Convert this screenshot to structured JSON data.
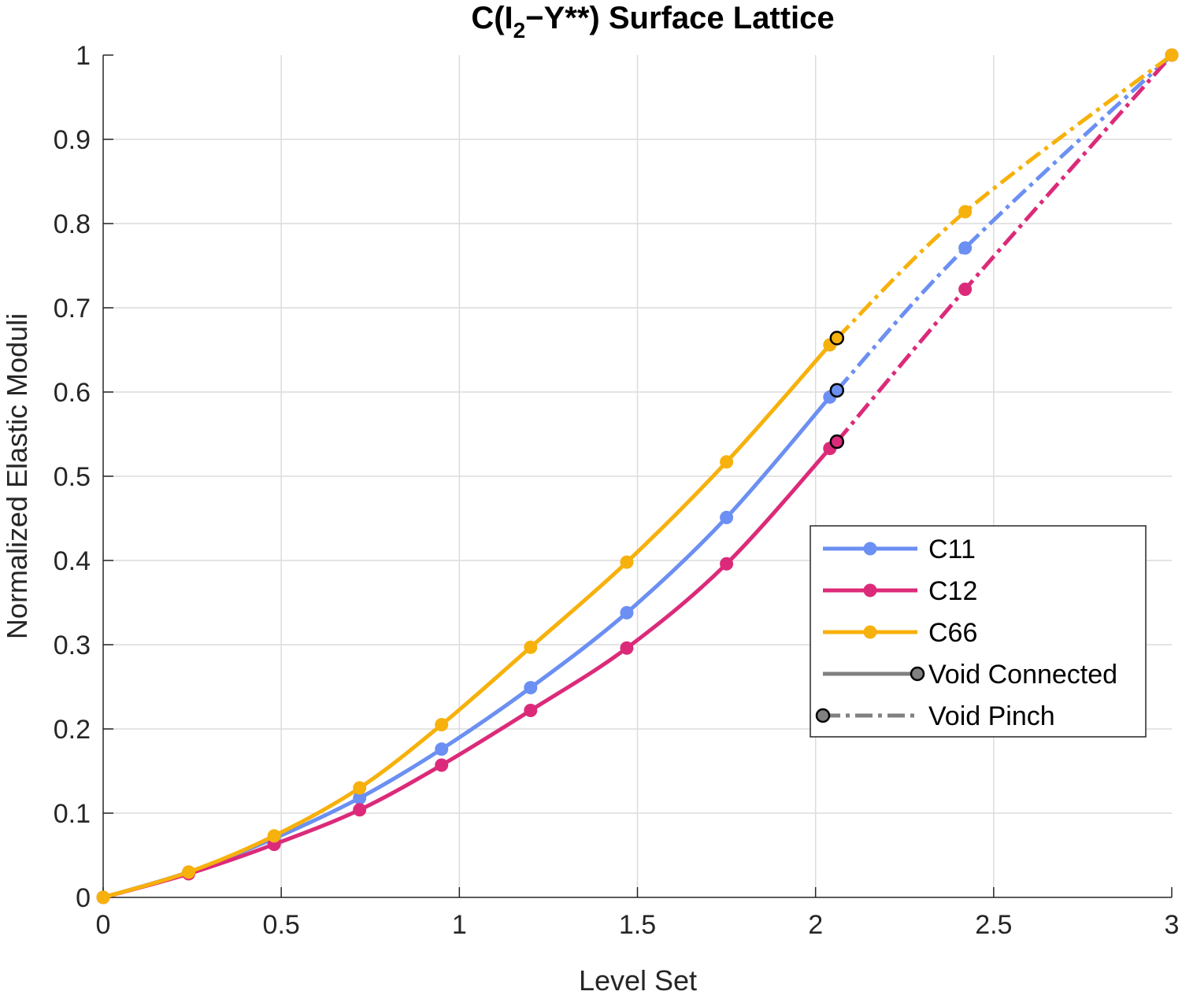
{
  "chart_data": {
    "type": "line",
    "title_main": "C(I",
    "title_sub": "2",
    "title_rest": "−Y**) Surface Lattice",
    "xlabel": "Level Set",
    "ylabel": "Normalized Elastic Moduli",
    "xlim": [
      0,
      3
    ],
    "ylim": [
      0,
      1
    ],
    "xticks": [
      0,
      0.5,
      1,
      1.5,
      2,
      2.5,
      3
    ],
    "xtick_labels": [
      "0",
      "0.5",
      "1",
      "1.5",
      "2",
      "2.5",
      "3"
    ],
    "yticks": [
      0,
      0.1,
      0.2,
      0.3,
      0.4,
      0.5,
      0.6,
      0.7,
      0.8,
      0.9,
      1
    ],
    "ytick_labels": [
      "0",
      "0.1",
      "0.2",
      "0.3",
      "0.4",
      "0.5",
      "0.6",
      "0.7",
      "0.8",
      "0.9",
      "1"
    ],
    "grid": true,
    "legend_position": "lower-right",
    "series": [
      {
        "name": "C11",
        "color": "#6b8ff2",
        "connected": {
          "x": [
            0,
            0.24,
            0.48,
            0.72,
            0.95,
            1.2,
            1.47,
            1.75,
            2.04
          ],
          "y": [
            0,
            0.03,
            0.07,
            0.118,
            0.176,
            0.249,
            0.338,
            0.451,
            0.594
          ]
        },
        "pinch": {
          "x": [
            2.06,
            2.42,
            3.0
          ],
          "y": [
            0.602,
            0.771,
            1.0
          ]
        }
      },
      {
        "name": "C12",
        "color": "#dc2a7a",
        "connected": {
          "x": [
            0,
            0.24,
            0.48,
            0.72,
            0.95,
            1.2,
            1.47,
            1.75,
            2.04
          ],
          "y": [
            0,
            0.028,
            0.063,
            0.104,
            0.157,
            0.222,
            0.296,
            0.396,
            0.533
          ]
        },
        "pinch": {
          "x": [
            2.06,
            2.42,
            3.0
          ],
          "y": [
            0.541,
            0.722,
            1.0
          ]
        }
      },
      {
        "name": "C66",
        "color": "#f7b10c",
        "connected": {
          "x": [
            0,
            0.24,
            0.48,
            0.72,
            0.95,
            1.2,
            1.47,
            1.75,
            2.04
          ],
          "y": [
            0,
            0.03,
            0.073,
            0.13,
            0.205,
            0.297,
            0.398,
            0.517,
            0.656
          ]
        },
        "pinch": {
          "x": [
            2.06,
            2.42,
            3.0
          ],
          "y": [
            0.664,
            0.814,
            1.0
          ]
        }
      }
    ],
    "legend_entries": [
      {
        "label": "C11",
        "color": "#6b8ff2",
        "style": "solid-dot"
      },
      {
        "label": "C12",
        "color": "#dc2a7a",
        "style": "solid-dot"
      },
      {
        "label": "C66",
        "color": "#f7b10c",
        "style": "solid-dot"
      },
      {
        "label": "Void Connected",
        "color": "#808080",
        "style": "solid-end-marker"
      },
      {
        "label": "Void Pinch",
        "color": "#808080",
        "style": "dashdot-start-marker"
      }
    ]
  }
}
